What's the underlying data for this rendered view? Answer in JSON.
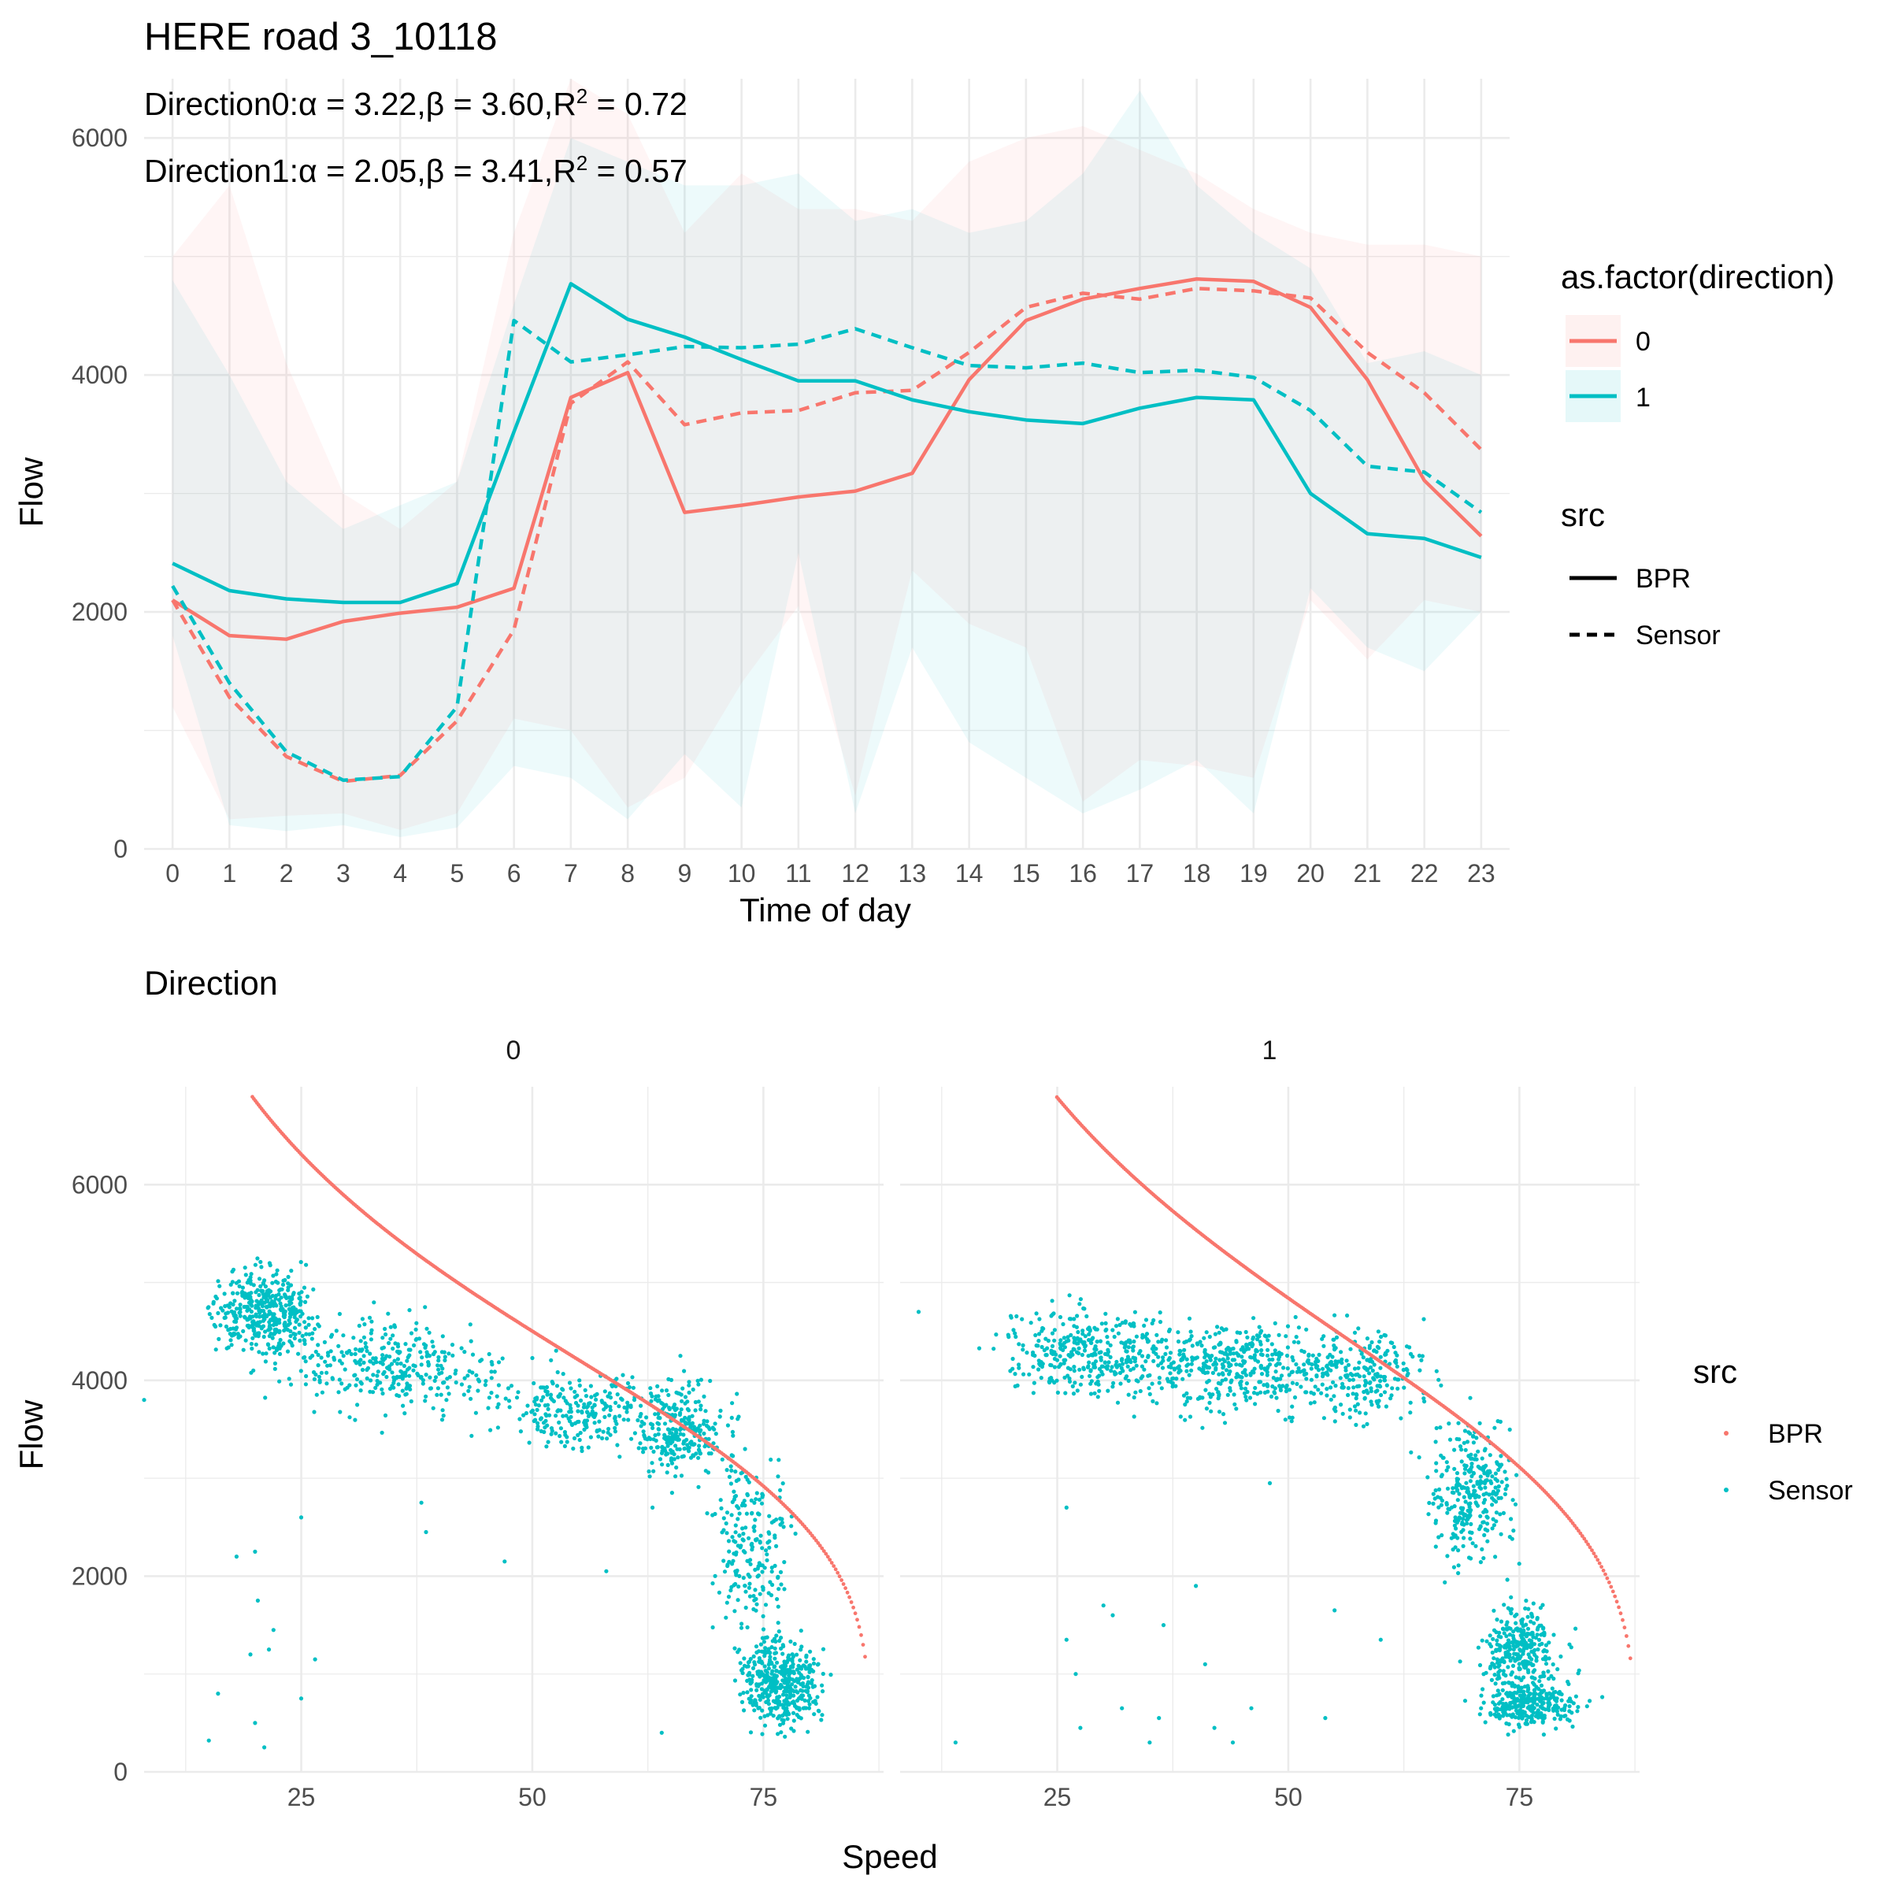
{
  "colors": {
    "direction_0": "#F8766D",
    "direction_1": "#00BFC4",
    "grid": "#ebebeb",
    "tick_text": "#4d4d4d"
  },
  "chart_data": [
    {
      "type": "line",
      "title": "HERE road 3_10118",
      "annotations": [
        {
          "prefix": "Direction0:",
          "alpha": "3.22",
          "beta": "3.60",
          "r2": "0.72"
        },
        {
          "prefix": "Direction1:",
          "alpha": "2.05",
          "beta": "3.41",
          "r2": "0.57"
        }
      ],
      "annotation_symbols": {
        "alpha": "α",
        "beta": "β",
        "equals": " = ",
        "comma": ",",
        "r": "R",
        "sup": "2"
      },
      "xlabel": "Time of day",
      "ylabel": "Flow",
      "x": [
        0,
        1,
        2,
        3,
        4,
        5,
        6,
        7,
        8,
        9,
        10,
        11,
        12,
        13,
        14,
        15,
        16,
        17,
        18,
        19,
        20,
        21,
        22,
        23
      ],
      "xlim": [
        -0.5,
        23.5
      ],
      "ylim": [
        0,
        6500
      ],
      "y_ticks": [
        0,
        2000,
        4000,
        6000
      ],
      "y_minor_ticks": [
        1000,
        3000,
        5000
      ],
      "grid": true,
      "legend": [
        {
          "title": "as.factor(direction)",
          "entries": [
            "0",
            "1"
          ]
        },
        {
          "title": "src",
          "entries": [
            "BPR",
            "Sensor"
          ]
        }
      ],
      "series": [
        {
          "direction": "0",
          "src": "BPR",
          "values": [
            2100,
            1800,
            1770,
            1920,
            1990,
            2040,
            2200,
            3810,
            4020,
            2840,
            2900,
            2970,
            3020,
            3170,
            3960,
            4460,
            4640,
            4730,
            4810,
            4790,
            4570,
            3960,
            3110,
            2640
          ]
        },
        {
          "direction": "0",
          "src": "Sensor",
          "values": [
            2100,
            1280,
            780,
            570,
            620,
            1080,
            1850,
            3760,
            4110,
            3580,
            3680,
            3700,
            3850,
            3870,
            4190,
            4570,
            4690,
            4640,
            4730,
            4710,
            4650,
            4190,
            3850,
            3370
          ]
        },
        {
          "direction": "1",
          "src": "BPR",
          "values": [
            2410,
            2180,
            2110,
            2080,
            2080,
            2240,
            3520,
            4770,
            4470,
            4320,
            4130,
            3950,
            3950,
            3790,
            3690,
            3620,
            3590,
            3720,
            3810,
            3790,
            3000,
            2660,
            2620,
            2460
          ]
        },
        {
          "direction": "1",
          "src": "Sensor",
          "values": [
            2220,
            1400,
            820,
            580,
            610,
            1200,
            4460,
            4110,
            4170,
            4240,
            4230,
            4260,
            4390,
            4230,
            4080,
            4060,
            4100,
            4020,
            4040,
            3980,
            3700,
            3230,
            3180,
            2840
          ]
        }
      ],
      "ribbons": [
        {
          "direction": "0",
          "low": [
            1200,
            250,
            280,
            300,
            160,
            300,
            1100,
            1000,
            350,
            600,
            1400,
            2050,
            450,
            2350,
            1900,
            1700,
            400,
            750,
            700,
            600,
            2100,
            1600,
            2100,
            2000
          ],
          "high": [
            5000,
            5600,
            4100,
            3000,
            2700,
            3100,
            5200,
            6500,
            6200,
            5200,
            5700,
            5400,
            5400,
            5300,
            5800,
            6000,
            6100,
            5900,
            5700,
            5400,
            5200,
            5100,
            5100,
            5000
          ]
        },
        {
          "direction": "1",
          "low": [
            1800,
            200,
            150,
            200,
            100,
            180,
            700,
            600,
            250,
            800,
            350,
            2500,
            300,
            1700,
            900,
            600,
            300,
            500,
            750,
            300,
            2200,
            1700,
            1500,
            2000
          ],
          "high": [
            4800,
            4000,
            3100,
            2700,
            2900,
            3100,
            4600,
            6000,
            5800,
            5600,
            5600,
            5700,
            5300,
            5400,
            5200,
            5300,
            5700,
            6400,
            5600,
            5200,
            4900,
            4100,
            4200,
            4000
          ]
        }
      ]
    },
    {
      "type": "scatter",
      "title": "Direction",
      "xlabel": "Speed",
      "ylabel": "Flow",
      "panels": [
        "0",
        "1"
      ],
      "xlim": [
        8,
        88
      ],
      "ylim": [
        0,
        7000
      ],
      "x_ticks": [
        25,
        50,
        75
      ],
      "x_minor_ticks": [
        12.5,
        37.5,
        62.5,
        87.5
      ],
      "y_ticks": [
        0,
        2000,
        4000,
        6000
      ],
      "y_minor_ticks": [
        1000,
        3000,
        5000
      ],
      "grid": true,
      "legend": {
        "title": "src",
        "entries": [
          "BPR",
          "Sensor"
        ]
      },
      "bpr_curves": [
        {
          "panel": "0",
          "speed_range": [
            8.5,
            86
          ],
          "alpha": 3.22,
          "beta": 3.6,
          "capacity": 6800
        },
        {
          "panel": "1",
          "speed_range": [
            11,
            87
          ],
          "alpha": 2.05,
          "beta": 3.41,
          "capacity": 6500
        }
      ],
      "sensor_clusters": [
        {
          "panel": "0",
          "cx": 21,
          "cy": 4700,
          "sx": 4,
          "sy": 280,
          "n": 420
        },
        {
          "panel": "0",
          "cx": 35,
          "cy": 4150,
          "sx": 8,
          "sy": 320,
          "n": 330
        },
        {
          "panel": "0",
          "cx": 55,
          "cy": 3700,
          "sx": 6,
          "sy": 280,
          "n": 240
        },
        {
          "panel": "0",
          "cx": 66,
          "cy": 3500,
          "sx": 3.5,
          "sy": 330,
          "n": 280
        },
        {
          "panel": "0",
          "cx": 74,
          "cy": 2300,
          "sx": 3,
          "sy": 650,
          "n": 220
        },
        {
          "panel": "0",
          "cx": 77,
          "cy": 900,
          "sx": 2.8,
          "sy": 320,
          "n": 420
        },
        {
          "panel": "1",
          "cx": 28,
          "cy": 4300,
          "sx": 6,
          "sy": 300,
          "n": 320
        },
        {
          "panel": "1",
          "cx": 44,
          "cy": 4150,
          "sx": 8,
          "sy": 330,
          "n": 450
        },
        {
          "panel": "1",
          "cx": 58,
          "cy": 4050,
          "sx": 5,
          "sy": 320,
          "n": 230
        },
        {
          "panel": "1",
          "cx": 70,
          "cy": 2900,
          "sx": 3,
          "sy": 500,
          "n": 300
        },
        {
          "panel": "1",
          "cx": 75,
          "cy": 1250,
          "sx": 3,
          "sy": 320,
          "n": 300
        },
        {
          "panel": "1",
          "cx": 76,
          "cy": 700,
          "sx": 3.5,
          "sy": 170,
          "n": 280
        }
      ],
      "outliers": [
        {
          "panel": "0",
          "x": 8,
          "y": 3800
        },
        {
          "panel": "0",
          "x": 15,
          "y": 320
        },
        {
          "panel": "0",
          "x": 16,
          "y": 800
        },
        {
          "panel": "0",
          "x": 18,
          "y": 2200
        },
        {
          "panel": "0",
          "x": 20,
          "y": 2250
        },
        {
          "panel": "0",
          "x": 19.5,
          "y": 1200
        },
        {
          "panel": "0",
          "x": 20.3,
          "y": 1750
        },
        {
          "panel": "0",
          "x": 21.5,
          "y": 1250
        },
        {
          "panel": "0",
          "x": 22,
          "y": 1450
        },
        {
          "panel": "0",
          "x": 20,
          "y": 500
        },
        {
          "panel": "0",
          "x": 21,
          "y": 250
        },
        {
          "panel": "0",
          "x": 25,
          "y": 2600
        },
        {
          "panel": "0",
          "x": 25,
          "y": 750
        },
        {
          "panel": "0",
          "x": 26.5,
          "y": 1150
        },
        {
          "panel": "0",
          "x": 38,
          "y": 2750
        },
        {
          "panel": "0",
          "x": 38.5,
          "y": 2450
        },
        {
          "panel": "0",
          "x": 47,
          "y": 2150
        },
        {
          "panel": "0",
          "x": 58,
          "y": 2050
        },
        {
          "panel": "0",
          "x": 64,
          "y": 400
        },
        {
          "panel": "0",
          "x": 63,
          "y": 2700
        },
        {
          "panel": "1",
          "x": 10,
          "y": 4700
        },
        {
          "panel": "1",
          "x": 14,
          "y": 300
        },
        {
          "panel": "1",
          "x": 26,
          "y": 2700
        },
        {
          "panel": "1",
          "x": 26,
          "y": 1350
        },
        {
          "panel": "1",
          "x": 27,
          "y": 1000
        },
        {
          "panel": "1",
          "x": 27.5,
          "y": 450
        },
        {
          "panel": "1",
          "x": 30,
          "y": 1700
        },
        {
          "panel": "1",
          "x": 31,
          "y": 1600
        },
        {
          "panel": "1",
          "x": 32,
          "y": 650
        },
        {
          "panel": "1",
          "x": 35,
          "y": 300
        },
        {
          "panel": "1",
          "x": 36,
          "y": 550
        },
        {
          "panel": "1",
          "x": 36.5,
          "y": 1500
        },
        {
          "panel": "1",
          "x": 40,
          "y": 1900
        },
        {
          "panel": "1",
          "x": 41,
          "y": 1100
        },
        {
          "panel": "1",
          "x": 42,
          "y": 450
        },
        {
          "panel": "1",
          "x": 44,
          "y": 300
        },
        {
          "panel": "1",
          "x": 46,
          "y": 650
        },
        {
          "panel": "1",
          "x": 48,
          "y": 2950
        },
        {
          "panel": "1",
          "x": 54,
          "y": 550
        },
        {
          "panel": "1",
          "x": 55,
          "y": 1650
        },
        {
          "panel": "1",
          "x": 60,
          "y": 1350
        }
      ]
    }
  ]
}
